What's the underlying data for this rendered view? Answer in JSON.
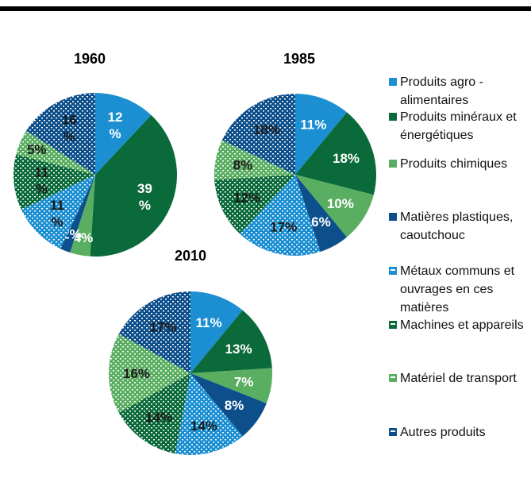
{
  "chart_data": [
    {
      "type": "pie",
      "title": "1960",
      "categories": [
        "Produits agro - alimentaires",
        "Produits minéraux et énergétiques",
        "Produits chimiques",
        "Matières plastiques, caoutchouc",
        "Métaux communs et ouvrages en ces matières",
        "Machines et appareils",
        "Matériel de transport",
        "Autres produits"
      ],
      "colors": [
        "#1b8fd2",
        "#0b6a3a",
        "#5aae61",
        "#0d4f8b",
        "#1b8fd2",
        "#0b6a3a",
        "#5aae61",
        "#0d4f8b"
      ],
      "patterned": [
        false,
        false,
        false,
        false,
        true,
        true,
        true,
        true
      ],
      "values": [
        12,
        39,
        4,
        2,
        11,
        11,
        5,
        16
      ],
      "value_labels": [
        "12 %",
        "39 %",
        "4%",
        "2%",
        "11 %",
        "11 %",
        "5%",
        "16 %"
      ]
    },
    {
      "type": "pie",
      "title": "1985",
      "values": [
        11,
        18,
        10,
        6,
        17,
        12,
        8,
        18
      ],
      "value_labels": [
        "11%",
        "18%",
        "10%",
        "6%",
        "17%",
        "12%",
        "8%",
        "18%"
      ]
    },
    {
      "type": "pie",
      "title": "2010",
      "values": [
        11,
        13,
        7,
        8,
        14,
        14,
        16,
        17
      ],
      "value_labels": [
        "11%",
        "13%",
        "7%",
        "8%",
        "14%",
        "14%",
        "16%",
        "17%"
      ]
    }
  ]
}
